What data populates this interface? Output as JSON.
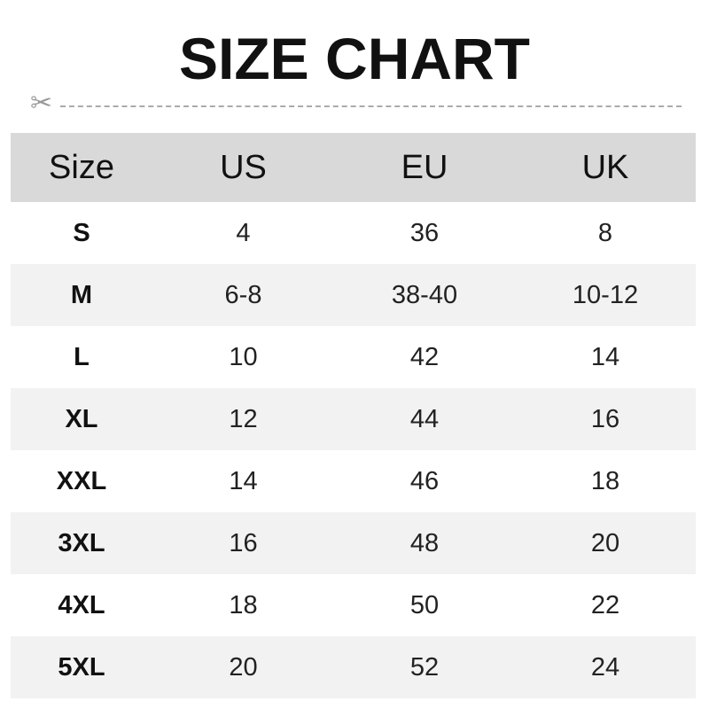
{
  "title": "SIZE CHART",
  "divider": {
    "icon": "scissors-icon"
  },
  "table": {
    "headers": [
      "Size",
      "US",
      "EU",
      "UK"
    ],
    "rows": [
      [
        "S",
        "4",
        "36",
        "8"
      ],
      [
        "M",
        "6-8",
        "38-40",
        "10-12"
      ],
      [
        "L",
        "10",
        "42",
        "14"
      ],
      [
        "XL",
        "12",
        "44",
        "16"
      ],
      [
        "XXL",
        "14",
        "46",
        "18"
      ],
      [
        "3XL",
        "16",
        "48",
        "20"
      ],
      [
        "4XL",
        "18",
        "50",
        "22"
      ],
      [
        "5XL",
        "20",
        "52",
        "24"
      ]
    ]
  }
}
